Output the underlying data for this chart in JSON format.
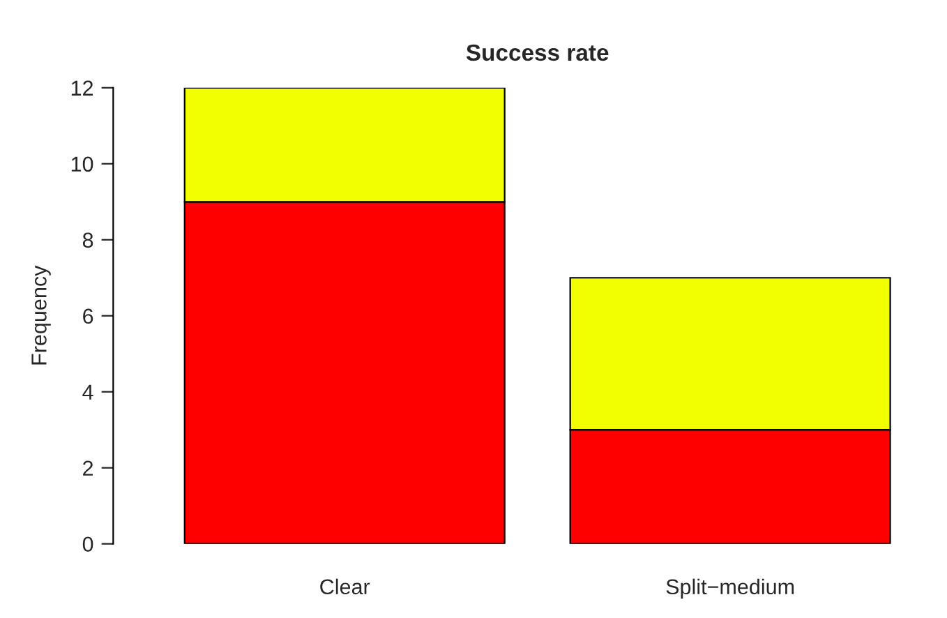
{
  "chart_data": {
    "type": "bar",
    "title": "Success rate",
    "ylabel": "Frequency",
    "categories": [
      "Clear",
      "Split−medium"
    ],
    "stacked": true,
    "series": [
      {
        "color": "#ff0000",
        "values": [
          9,
          3
        ]
      },
      {
        "color": "#f2ff00",
        "values": [
          3,
          4
        ]
      }
    ],
    "ylim": [
      0,
      12
    ],
    "yticks": [
      0,
      2,
      4,
      6,
      8,
      10,
      12
    ],
    "grid": false,
    "legend": false
  }
}
